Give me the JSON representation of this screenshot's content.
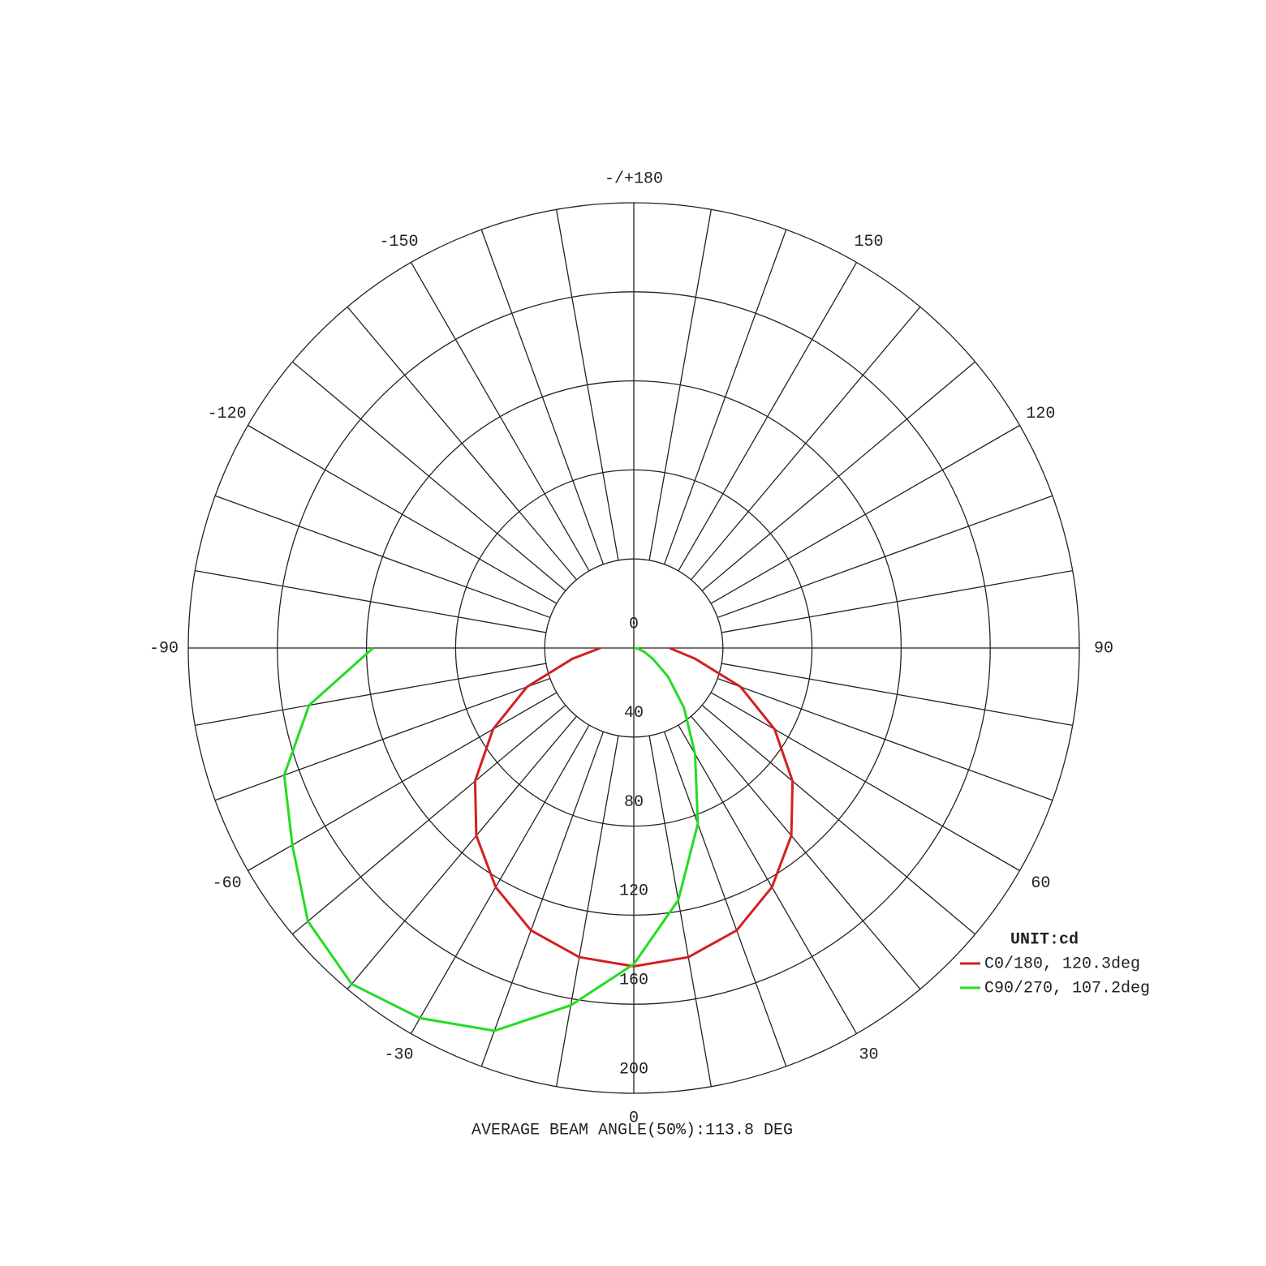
{
  "chart_data": {
    "type": "polar",
    "unit_label": "UNIT:cd",
    "footer": "AVERAGE BEAM ANGLE(50%):113.8 DEG",
    "angles": [
      -90,
      -80,
      -70,
      -60,
      -50,
      -40,
      -30,
      -20,
      -10,
      0,
      10,
      20,
      30,
      40,
      50,
      60,
      70,
      80,
      90
    ],
    "series": [
      {
        "name": "C0/180, 120.3deg",
        "color": "#d42020",
        "values": [
          15,
          28,
          51,
          73,
          93,
          110,
          124,
          135,
          141,
          143,
          141,
          135,
          124,
          110,
          93,
          73,
          51,
          28,
          16
        ]
      },
      {
        "name": "C90/270, 107.2deg",
        "color": "#22dd22",
        "values": [
          117,
          148,
          167,
          177,
          191,
          197,
          192,
          183,
          163,
          142,
          115,
          84,
          55,
          35,
          20,
          10,
          5,
          2,
          0
        ]
      }
    ],
    "rlim": [
      0,
      200
    ],
    "rticks": [
      0,
      40,
      80,
      120,
      160,
      200
    ],
    "thetaticks": [
      0,
      30,
      60,
      90,
      120,
      150,
      {
        "value": 180,
        "label": "-/+180"
      },
      -150,
      -120,
      -90,
      -60,
      -30
    ],
    "thetagrid": [
      -170,
      -160,
      -150,
      -140,
      -130,
      -120,
      -110,
      -100,
      -90,
      -80,
      -70,
      -60,
      -50,
      -40,
      -30,
      -20,
      -10,
      0,
      10,
      20,
      30,
      40,
      50,
      60,
      70,
      80,
      90,
      100,
      110,
      120,
      130,
      140,
      150,
      160,
      170,
      180
    ]
  }
}
